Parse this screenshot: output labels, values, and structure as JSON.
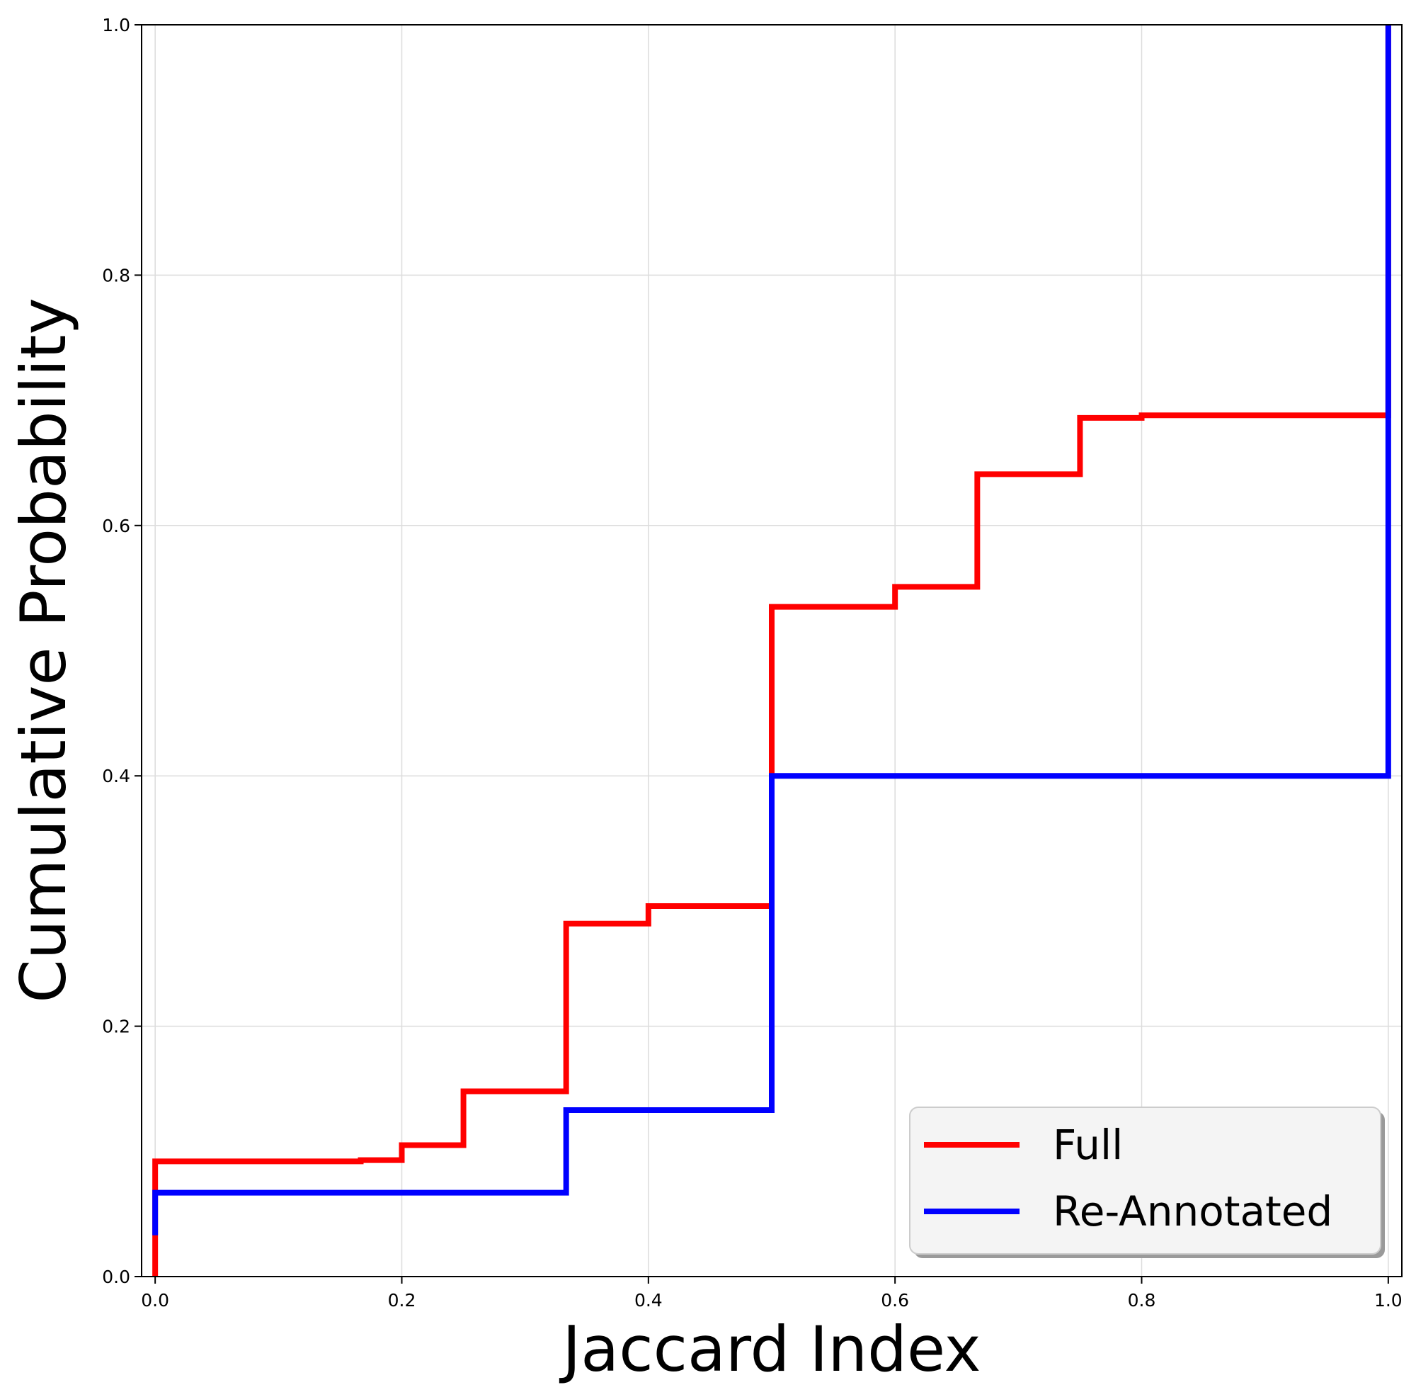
{
  "chart_data": {
    "type": "line",
    "subtype": "step-cdf",
    "title": "",
    "xlabel": "Jaccard Index",
    "ylabel": "Cumulative Probability",
    "xlim": [
      -0.011,
      1.011
    ],
    "ylim": [
      0.0,
      1.0
    ],
    "xticks": [
      0.0,
      0.2,
      0.4,
      0.6,
      0.8,
      1.0
    ],
    "xtick_labels": [
      "0.0",
      "0.2",
      "0.4",
      "0.6",
      "0.8",
      "1.0"
    ],
    "yticks": [
      0.0,
      0.2,
      0.4,
      0.6,
      0.8,
      1.0
    ],
    "ytick_labels": [
      "0.0",
      "0.2",
      "0.4",
      "0.6",
      "0.8",
      "1.0"
    ],
    "grid": true,
    "legend_position": "lower-right",
    "series": [
      {
        "name": "Full",
        "color": "#ff0000",
        "x": [
          0.0,
          0.0,
          0.1667,
          0.2,
          0.25,
          0.3333,
          0.4,
          0.5,
          0.6,
          0.6667,
          0.75,
          0.8,
          1.0
        ],
        "y": [
          0.0,
          0.092,
          0.093,
          0.105,
          0.148,
          0.282,
          0.296,
          0.535,
          0.551,
          0.641,
          0.686,
          0.688,
          1.0
        ]
      },
      {
        "name": "Re-Annotated",
        "color": "#0000ff",
        "x": [
          0.0,
          0.0,
          0.3333,
          0.5,
          1.0
        ],
        "y": [
          0.033,
          0.067,
          0.133,
          0.4,
          1.0
        ]
      }
    ]
  }
}
